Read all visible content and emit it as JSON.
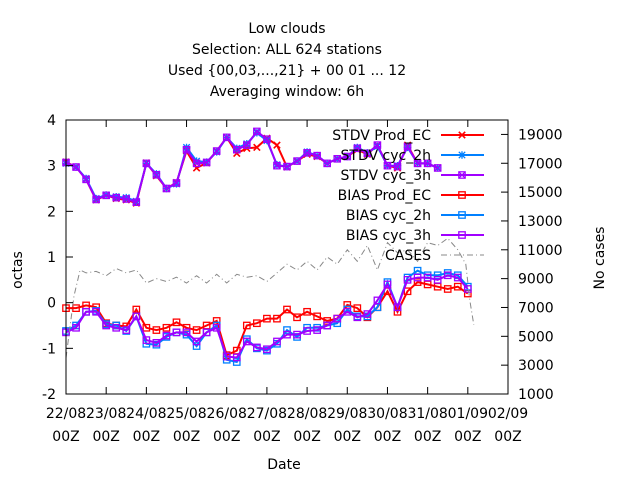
{
  "chart_data": {
    "type": "line",
    "title_lines": [
      "Low clouds",
      "Selection: ALL    624 stations",
      "Used {00,03,...,21} + 00 01 ... 12",
      "Averaging window:  6h"
    ],
    "xlabel": "Date",
    "ylabel": "octas",
    "y2label": "No cases",
    "ylim": [
      -2,
      4
    ],
    "y2lim": [
      1000,
      20000
    ],
    "y_ticks": [
      "-2",
      "-1",
      "0",
      "1",
      "2",
      "3",
      "4"
    ],
    "y2_ticks": [
      "1000",
      "3000",
      "5000",
      "7000",
      "9000",
      "11000",
      "13000",
      "15000",
      "17000",
      "19000"
    ],
    "x_tick_dates": [
      "22/08",
      "23/08",
      "24/08",
      "25/08",
      "26/08",
      "27/08",
      "28/08",
      "29/08",
      "30/08",
      "31/08",
      "01/09",
      "02/09"
    ],
    "x_tick_times": [
      "00Z",
      "00Z",
      "00Z",
      "00Z",
      "00Z",
      "00Z",
      "00Z",
      "00Z",
      "00Z",
      "00Z",
      "00Z",
      "00Z"
    ],
    "xlim_days": [
      0,
      11
    ],
    "x_days": [
      0,
      0.25,
      0.5,
      0.75,
      1,
      1.25,
      1.5,
      1.75,
      2,
      2.25,
      2.5,
      2.75,
      3,
      3.25,
      3.5,
      3.75,
      4,
      4.25,
      4.5,
      4.75,
      5,
      5.25,
      5.5,
      5.75,
      6,
      6.25,
      6.5,
      6.75,
      7,
      7.25,
      7.5,
      7.75,
      8,
      8.25,
      8.5,
      8.75,
      9,
      9.25,
      9.5,
      9.75,
      10
    ],
    "legend_position": "top-right",
    "grid": false,
    "series": [
      {
        "name": "STDV Prod_EC",
        "color": "#ff0000",
        "marker": "x",
        "axis": "y",
        "values": [
          3.08,
          2.97,
          2.7,
          2.25,
          2.35,
          2.28,
          2.25,
          2.18,
          3.06,
          2.78,
          2.5,
          2.63,
          3.32,
          2.95,
          3.06,
          3.32,
          3.62,
          3.27,
          3.38,
          3.4,
          3.6,
          3.45,
          2.97,
          3.1,
          3.25,
          3.2,
          3.05,
          3.15,
          3.2,
          3.35,
          3.25,
          3.45,
          3.0,
          2.95,
          3.45,
          3.05,
          3.05,
          2.95,
          null,
          null,
          null
        ]
      },
      {
        "name": "STDV cyc_2h",
        "color": "#0080ff",
        "marker": "star",
        "axis": "y",
        "values": [
          3.05,
          2.97,
          2.72,
          2.28,
          2.36,
          2.32,
          2.3,
          2.22,
          3.05,
          2.82,
          2.5,
          2.6,
          3.4,
          3.1,
          3.08,
          3.3,
          3.62,
          3.38,
          3.48,
          3.72,
          3.55,
          3.02,
          2.98,
          3.1,
          3.3,
          3.22,
          3.05,
          3.15,
          3.2,
          3.4,
          3.28,
          3.42,
          3.0,
          3.0,
          3.4,
          3.05,
          3.05,
          2.95,
          null,
          null,
          null
        ]
      },
      {
        "name": "STDV cyc_3h",
        "color": "#a000ff",
        "marker": "x-square",
        "axis": "y",
        "values": [
          3.07,
          2.97,
          2.7,
          2.26,
          2.35,
          2.3,
          2.27,
          2.2,
          3.05,
          2.8,
          2.5,
          2.62,
          3.35,
          3.05,
          3.07,
          3.32,
          3.62,
          3.35,
          3.45,
          3.75,
          3.58,
          3.0,
          2.98,
          3.1,
          3.28,
          3.22,
          3.05,
          3.15,
          3.2,
          3.38,
          3.27,
          3.45,
          3.0,
          2.98,
          3.42,
          3.05,
          3.05,
          2.95,
          null,
          null,
          null
        ]
      },
      {
        "name": "BIAS Prod_EC",
        "color": "#ff0000",
        "marker": "square",
        "axis": "y",
        "values": [
          -0.12,
          -0.12,
          -0.06,
          -0.1,
          -0.45,
          -0.5,
          -0.52,
          -0.15,
          -0.55,
          -0.6,
          -0.55,
          -0.43,
          -0.55,
          -0.6,
          -0.5,
          -0.4,
          -1.15,
          -1.05,
          -0.5,
          -0.45,
          -0.35,
          -0.35,
          -0.15,
          -0.32,
          -0.2,
          -0.3,
          -0.4,
          -0.35,
          -0.05,
          -0.12,
          -0.32,
          -0.1,
          0.25,
          -0.2,
          0.25,
          0.45,
          0.4,
          0.35,
          0.3,
          0.35,
          0.2
        ]
      },
      {
        "name": "BIAS cyc_2h",
        "color": "#0080ff",
        "marker": "square",
        "axis": "y",
        "values": [
          -0.62,
          -0.5,
          -0.2,
          -0.18,
          -0.47,
          -0.5,
          -0.62,
          -0.3,
          -0.9,
          -0.92,
          -0.75,
          -0.65,
          -0.7,
          -0.95,
          -0.65,
          -0.5,
          -1.25,
          -1.3,
          -0.8,
          -1.0,
          -1.05,
          -0.9,
          -0.6,
          -0.75,
          -0.55,
          -0.55,
          -0.5,
          -0.45,
          -0.15,
          -0.3,
          -0.3,
          -0.1,
          0.45,
          -0.1,
          0.55,
          0.7,
          0.6,
          0.6,
          0.65,
          0.6,
          0.35
        ]
      },
      {
        "name": "BIAS cyc_3h",
        "color": "#a000ff",
        "marker": "square",
        "axis": "y",
        "values": [
          -0.65,
          -0.55,
          -0.2,
          -0.2,
          -0.5,
          -0.55,
          -0.6,
          -0.3,
          -0.82,
          -0.88,
          -0.72,
          -0.65,
          -0.65,
          -0.85,
          -0.65,
          -0.55,
          -1.18,
          -1.2,
          -0.85,
          -0.98,
          -1.02,
          -0.85,
          -0.7,
          -0.7,
          -0.62,
          -0.6,
          -0.5,
          -0.35,
          -0.2,
          -0.32,
          -0.25,
          0.05,
          0.4,
          -0.1,
          0.5,
          0.55,
          0.55,
          0.5,
          0.6,
          0.55,
          0.3
        ]
      },
      {
        "name": "CASES",
        "color": "#888888",
        "dash": "dashdot",
        "axis": "y2",
        "points": [
          [
            0,
            3500
          ],
          [
            0.2,
            7800
          ],
          [
            0.35,
            9600
          ],
          [
            0.5,
            9400
          ],
          [
            0.75,
            9500
          ],
          [
            1,
            9200
          ],
          [
            1.25,
            9700
          ],
          [
            1.5,
            9400
          ],
          [
            1.75,
            9600
          ],
          [
            2,
            8700
          ],
          [
            2.25,
            9000
          ],
          [
            2.5,
            8800
          ],
          [
            2.75,
            9100
          ],
          [
            3,
            8700
          ],
          [
            3.25,
            9200
          ],
          [
            3.5,
            8700
          ],
          [
            3.75,
            9300
          ],
          [
            4,
            8700
          ],
          [
            4.25,
            9300
          ],
          [
            4.5,
            9100
          ],
          [
            4.75,
            9200
          ],
          [
            5,
            8800
          ],
          [
            5.25,
            9400
          ],
          [
            5.5,
            10000
          ],
          [
            5.75,
            9600
          ],
          [
            6,
            10200
          ],
          [
            6.25,
            9600
          ],
          [
            6.5,
            10500
          ],
          [
            6.75,
            10000
          ],
          [
            7,
            11000
          ],
          [
            7.25,
            10200
          ],
          [
            7.5,
            11300
          ],
          [
            7.75,
            9600
          ],
          [
            8,
            11500
          ],
          [
            8.25,
            10800
          ],
          [
            8.5,
            11000
          ],
          [
            8.75,
            10200
          ],
          [
            9,
            11500
          ],
          [
            9.25,
            11300
          ],
          [
            9.5,
            11800
          ],
          [
            9.75,
            11000
          ],
          [
            9.95,
            10000
          ],
          [
            10.05,
            7500
          ],
          [
            10.15,
            5800
          ]
        ]
      }
    ]
  }
}
